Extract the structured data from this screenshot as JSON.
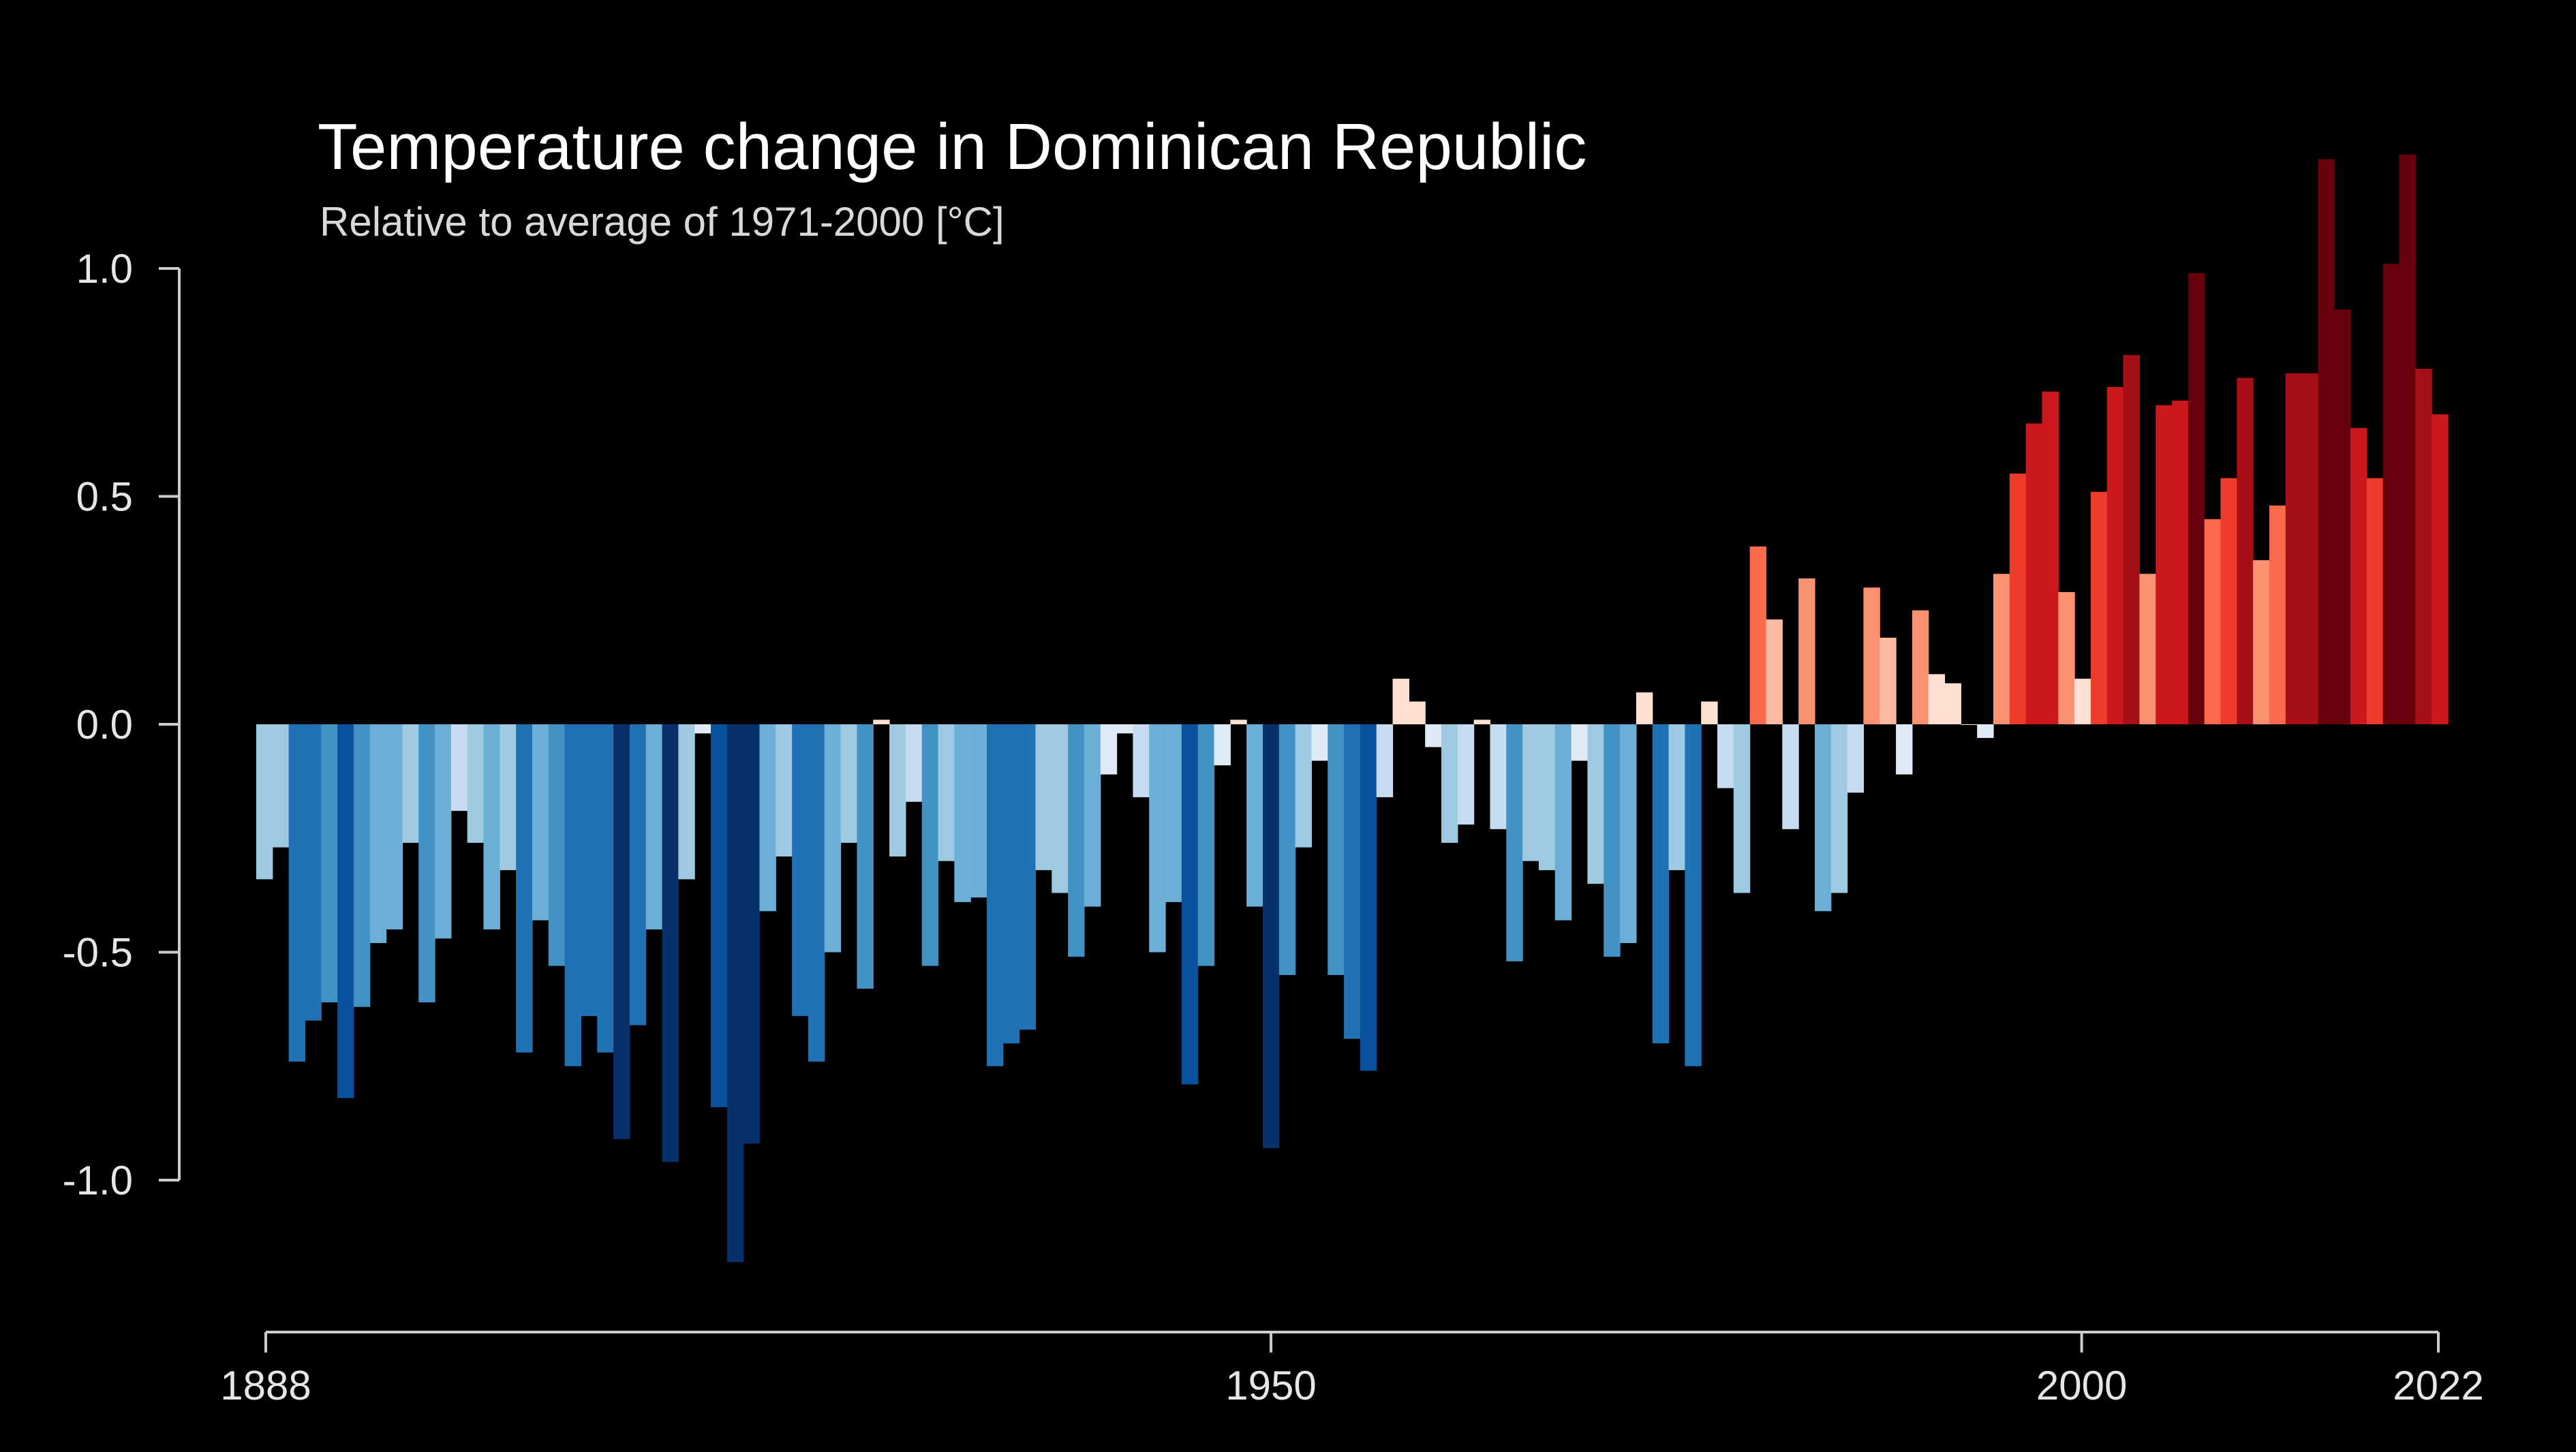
{
  "chart_data": {
    "type": "bar",
    "title": "Temperature change in Dominican Republic",
    "subtitle": "Relative to average of 1971-2000  [°C]",
    "xlabel": "",
    "ylabel": "",
    "x_start": 1888,
    "x_end": 2022,
    "xticks": [
      1888,
      1950,
      2000,
      2022
    ],
    "yticks": [
      -1.0,
      -0.5,
      0.0,
      0.5,
      1.0
    ],
    "ylim": [
      -1.2,
      1.25
    ],
    "grid": false,
    "legend": "none",
    "years": [
      1888,
      1889,
      1890,
      1891,
      1892,
      1893,
      1894,
      1895,
      1896,
      1897,
      1898,
      1899,
      1900,
      1901,
      1902,
      1903,
      1904,
      1905,
      1906,
      1907,
      1908,
      1909,
      1910,
      1911,
      1912,
      1913,
      1914,
      1915,
      1916,
      1917,
      1918,
      1919,
      1920,
      1921,
      1922,
      1923,
      1924,
      1925,
      1926,
      1927,
      1928,
      1929,
      1930,
      1931,
      1932,
      1933,
      1934,
      1935,
      1936,
      1937,
      1938,
      1939,
      1940,
      1941,
      1942,
      1943,
      1944,
      1945,
      1946,
      1947,
      1948,
      1949,
      1950,
      1951,
      1952,
      1953,
      1954,
      1955,
      1956,
      1957,
      1958,
      1959,
      1960,
      1961,
      1962,
      1963,
      1964,
      1965,
      1966,
      1967,
      1968,
      1969,
      1970,
      1971,
      1972,
      1973,
      1974,
      1975,
      1976,
      1977,
      1978,
      1979,
      1980,
      1981,
      1982,
      1983,
      1984,
      1985,
      1986,
      1987,
      1988,
      1989,
      1990,
      1991,
      1992,
      1993,
      1994,
      1995,
      1996,
      1997,
      1998,
      1999,
      2000,
      2001,
      2002,
      2003,
      2004,
      2005,
      2006,
      2007,
      2008,
      2009,
      2010,
      2011,
      2012,
      2013,
      2014,
      2015,
      2016,
      2017,
      2018,
      2019,
      2020,
      2021,
      2022
    ],
    "values": [
      -0.34,
      -0.27,
      -0.74,
      -0.65,
      -0.61,
      -0.82,
      -0.62,
      -0.48,
      -0.45,
      -0.26,
      -0.61,
      -0.47,
      -0.19,
      -0.26,
      -0.45,
      -0.32,
      -0.72,
      -0.43,
      -0.53,
      -0.75,
      -0.64,
      -0.72,
      -0.91,
      -0.66,
      -0.45,
      -0.96,
      -0.34,
      -0.02,
      -0.84,
      -1.18,
      -0.92,
      -0.41,
      -0.29,
      -0.64,
      -0.74,
      -0.5,
      -0.26,
      -0.58,
      0.01,
      -0.29,
      -0.17,
      -0.53,
      -0.3,
      -0.39,
      -0.38,
      -0.75,
      -0.7,
      -0.67,
      -0.32,
      -0.37,
      -0.51,
      -0.4,
      -0.11,
      -0.02,
      -0.16,
      -0.5,
      -0.39,
      -0.79,
      -0.53,
      -0.09,
      0.01,
      -0.4,
      -0.93,
      -0.55,
      -0.27,
      -0.08,
      -0.55,
      -0.69,
      -0.76,
      -0.16,
      0.1,
      0.05,
      -0.05,
      -0.26,
      -0.22,
      0.01,
      -0.23,
      -0.52,
      -0.3,
      -0.32,
      -0.43,
      -0.08,
      -0.35,
      -0.51,
      -0.48,
      0.07,
      -0.7,
      -0.32,
      -0.75,
      0.05,
      -0.14,
      -0.37,
      0.39,
      0.23,
      -0.23,
      0.32,
      -0.41,
      -0.37,
      -0.15,
      0.3,
      0.19,
      -0.11,
      0.25,
      0.11,
      0.09,
      0.0,
      -0.03,
      0.33,
      0.55,
      0.66,
      0.73,
      0.29,
      0.1,
      0.51,
      0.74,
      0.81,
      0.33,
      0.7,
      0.71,
      0.99,
      0.45,
      0.54,
      0.76,
      0.36,
      0.48,
      0.77,
      0.77,
      1.24,
      0.91,
      0.65,
      0.54,
      1.01,
      1.25,
      0.78,
      0.68
    ]
  }
}
